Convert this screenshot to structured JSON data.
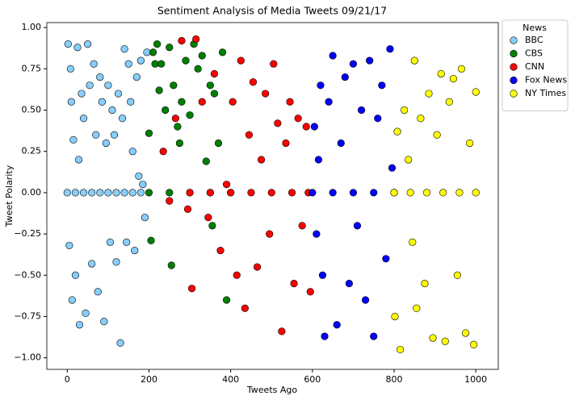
{
  "chart_data": {
    "type": "scatter",
    "title": "Sentiment Analysis of Media Tweets 09/21/17",
    "x_label": "Tweets Ago",
    "y_label": "Tweet Polarity",
    "xlim": [
      -50,
      1055
    ],
    "ylim": [
      -1.07,
      1.03
    ],
    "xticks": [
      0,
      200,
      400,
      600,
      800,
      1000
    ],
    "yticks": [
      {
        "value": 1,
        "label": "1.00"
      },
      {
        "value": 0.75,
        "label": "0.75"
      },
      {
        "value": 0.5,
        "label": "0.50"
      },
      {
        "value": 0.25,
        "label": "0.25"
      },
      {
        "value": 0,
        "label": "0.00"
      },
      {
        "value": -0.25,
        "label": "−0.25"
      },
      {
        "value": -0.5,
        "label": "−0.50"
      },
      {
        "value": -0.75,
        "label": "−0.75"
      },
      {
        "value": -1,
        "label": "−1.00"
      }
    ],
    "legend_title": "News",
    "legend_position": "outside upper right",
    "series": [
      {
        "name": "BBC",
        "color": "#87cefa",
        "x": [
          2,
          5,
          8,
          10,
          12,
          15,
          20,
          25,
          28,
          30,
          35,
          40,
          45,
          50,
          55,
          60,
          65,
          70,
          75,
          80,
          85,
          90,
          95,
          100,
          105,
          110,
          115,
          120,
          125,
          130,
          135,
          140,
          145,
          150,
          155,
          160,
          165,
          170,
          175,
          180,
          185,
          190,
          195,
          0,
          20,
          40,
          60,
          80,
          100,
          120,
          140,
          160,
          180
        ],
        "values": [
          0.9,
          -0.32,
          0.75,
          0.55,
          -0.65,
          0.32,
          -0.5,
          0.88,
          0.2,
          -0.8,
          0.6,
          0.45,
          -0.73,
          0.9,
          0.65,
          -0.43,
          0.78,
          0.35,
          -0.6,
          0.7,
          0.55,
          -0.78,
          0.3,
          0.65,
          -0.3,
          0.5,
          0.35,
          -0.42,
          0.6,
          -0.91,
          0.45,
          0.87,
          -0.3,
          0.78,
          0.55,
          0.25,
          -0.35,
          0.7,
          0.1,
          0.8,
          0.05,
          -0.15,
          0.85,
          0,
          0,
          0,
          0,
          0,
          0,
          0,
          0,
          0,
          0
        ]
      },
      {
        "name": "CBS",
        "color": "#008000",
        "x": [
          200,
          205,
          210,
          215,
          220,
          225,
          230,
          240,
          250,
          255,
          260,
          270,
          275,
          280,
          290,
          300,
          310,
          320,
          330,
          340,
          350,
          355,
          360,
          370,
          380,
          390,
          200,
          250,
          300,
          350,
          400
        ],
        "values": [
          0.36,
          -0.29,
          0.85,
          0.78,
          0.9,
          0.62,
          0.78,
          0.5,
          0.88,
          -0.44,
          0.65,
          0.4,
          0.3,
          0.55,
          0.8,
          0.47,
          0.9,
          0.75,
          0.83,
          0.19,
          0.65,
          -0.2,
          0.6,
          0.3,
          0.85,
          -0.65,
          0,
          0,
          0,
          0,
          0
        ]
      },
      {
        "name": "CNN",
        "color": "#ff0000",
        "x": [
          235,
          250,
          265,
          280,
          295,
          305,
          315,
          330,
          345,
          360,
          375,
          390,
          405,
          415,
          425,
          435,
          445,
          455,
          465,
          475,
          485,
          495,
          505,
          515,
          525,
          535,
          545,
          555,
          565,
          575,
          585,
          595,
          300,
          350,
          400,
          450,
          500,
          550,
          590
        ],
        "values": [
          0.25,
          -0.05,
          0.45,
          0.92,
          -0.1,
          -0.58,
          0.93,
          0.55,
          -0.15,
          0.72,
          -0.35,
          0.05,
          0.55,
          -0.5,
          0.8,
          -0.7,
          0.35,
          0.67,
          -0.45,
          0.2,
          0.6,
          -0.25,
          0.78,
          0.42,
          -0.84,
          0.3,
          0.55,
          -0.55,
          0.45,
          -0.2,
          0.4,
          -0.6,
          0,
          0,
          0,
          0,
          0,
          0,
          0
        ]
      },
      {
        "name": "Fox News",
        "color": "#0000ff",
        "x": [
          605,
          610,
          615,
          620,
          625,
          630,
          640,
          650,
          660,
          670,
          680,
          690,
          700,
          710,
          720,
          730,
          740,
          750,
          760,
          770,
          780,
          790,
          795,
          600,
          650,
          700,
          750,
          800
        ],
        "values": [
          0.4,
          -0.25,
          0.2,
          0.65,
          -0.5,
          -0.87,
          0.55,
          0.83,
          -0.8,
          0.3,
          0.7,
          -0.55,
          0.78,
          -0.2,
          0.5,
          -0.65,
          0.8,
          -0.87,
          0.45,
          0.65,
          -0.4,
          0.87,
          0.15,
          0,
          0,
          0,
          0,
          0
        ]
      },
      {
        "name": "NY Times",
        "color": "#ffff00",
        "x": [
          802,
          808,
          815,
          825,
          835,
          845,
          850,
          855,
          865,
          875,
          885,
          895,
          905,
          915,
          925,
          935,
          945,
          955,
          965,
          975,
          985,
          995,
          1000,
          800,
          840,
          880,
          920,
          960,
          1000
        ],
        "values": [
          -0.75,
          0.37,
          -0.95,
          0.5,
          0.2,
          -0.3,
          0.8,
          -0.7,
          0.45,
          -0.55,
          0.6,
          -0.88,
          0.35,
          0.72,
          -0.9,
          0.55,
          0.69,
          -0.5,
          0.75,
          -0.85,
          0.3,
          -0.92,
          0.61,
          0,
          0,
          0,
          0,
          0,
          0
        ]
      }
    ]
  }
}
